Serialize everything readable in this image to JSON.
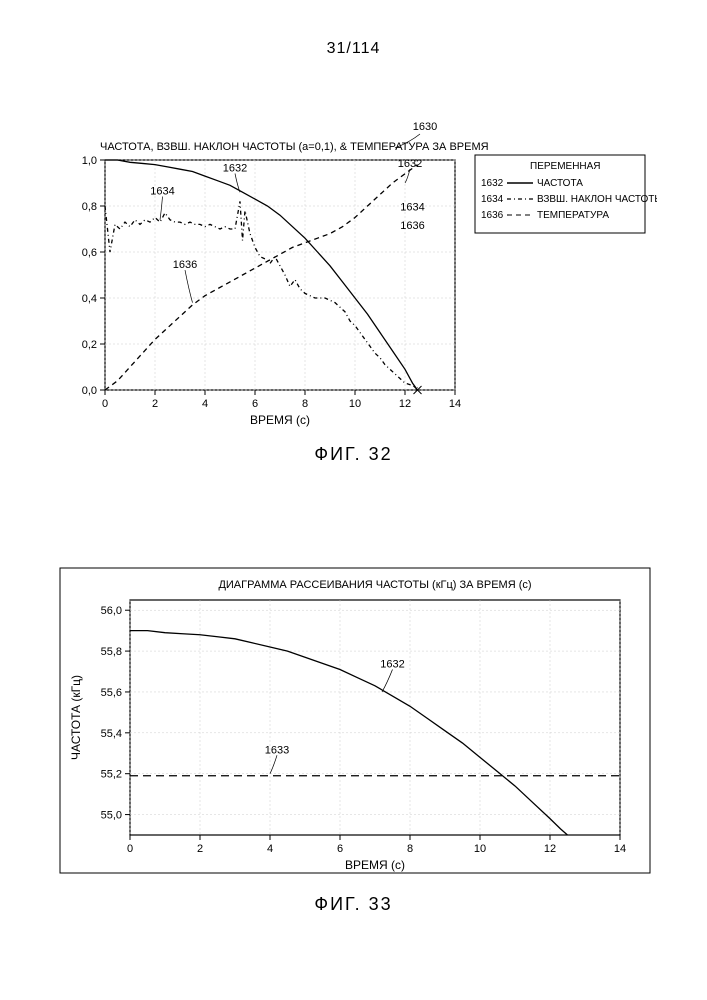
{
  "page": {
    "number": "31/114"
  },
  "fig32": {
    "type": "line-multi",
    "title": "ЧАСТОТА, ВЗВШ. НАКЛОН ЧАСТОТЫ (a=0,1), & ТЕМПЕРАТУРА ЗА ВРЕМЯ",
    "ref_label": "1630",
    "caption": "ФИГ. 32",
    "background_color": "#ffffff",
    "grid_color": "#cccccc",
    "border_color": "#000000",
    "x": {
      "label": "ВРЕМЯ (c)",
      "lim": [
        0,
        14
      ],
      "ticks": [
        0,
        2,
        4,
        6,
        8,
        10,
        12,
        14
      ]
    },
    "y": {
      "lim": [
        0.0,
        1.0
      ],
      "ticks": [
        0.0,
        0.2,
        0.4,
        0.6,
        0.8,
        1.0
      ],
      "tick_labels": [
        "0,0",
        "0,2",
        "0,4",
        "0,6",
        "0,8",
        "1,0"
      ]
    },
    "legend": {
      "header": "ПЕРЕМЕННАЯ",
      "items": [
        {
          "id": "1632",
          "label": "ЧАСТОТА",
          "color": "#000000",
          "dash": "",
          "width": 1.5
        },
        {
          "id": "1634",
          "label": "ВЗВШ. НАКЛОН ЧАСТОТЫ",
          "color": "#000000",
          "dash": "4 3 1 3",
          "width": 1.3
        },
        {
          "id": "1636",
          "label": "ТЕМПЕРАТУРА",
          "color": "#000000",
          "dash": "5 4",
          "width": 1.1
        }
      ]
    },
    "annotations": [
      {
        "text": "1630",
        "at_x": 12.8,
        "at_y": 1.12
      },
      {
        "text": "1632",
        "at_x": 5.2,
        "at_y": 0.95,
        "leader_to_x": 5.4,
        "leader_to_y": 0.86
      },
      {
        "text": "1632",
        "at_x": 12.2,
        "at_y": 0.97,
        "leader_to_x": 12.0,
        "leader_to_y": 0.9
      },
      {
        "text": "1634",
        "at_x": 2.3,
        "at_y": 0.85,
        "leader_to_x": 2.2,
        "leader_to_y": 0.74
      },
      {
        "text": "1636",
        "at_x": 3.2,
        "at_y": 0.53,
        "leader_to_x": 3.5,
        "leader_to_y": 0.38
      },
      {
        "text": "1634",
        "at_x": 12.3,
        "at_y": 0.78
      },
      {
        "text": "1636",
        "at_x": 12.3,
        "at_y": 0.7
      }
    ],
    "series": {
      "1632": [
        [
          0.0,
          1.0
        ],
        [
          0.5,
          1.0
        ],
        [
          1.0,
          0.99
        ],
        [
          1.5,
          0.985
        ],
        [
          2.0,
          0.98
        ],
        [
          2.5,
          0.97
        ],
        [
          3.0,
          0.96
        ],
        [
          3.5,
          0.95
        ],
        [
          4.0,
          0.93
        ],
        [
          4.5,
          0.91
        ],
        [
          5.0,
          0.89
        ],
        [
          5.5,
          0.86
        ],
        [
          6.0,
          0.83
        ],
        [
          6.5,
          0.8
        ],
        [
          7.0,
          0.76
        ],
        [
          7.5,
          0.71
        ],
        [
          8.0,
          0.66
        ],
        [
          8.5,
          0.6
        ],
        [
          9.0,
          0.54
        ],
        [
          9.5,
          0.47
        ],
        [
          10.0,
          0.4
        ],
        [
          10.5,
          0.33
        ],
        [
          11.0,
          0.25
        ],
        [
          11.5,
          0.17
        ],
        [
          12.0,
          0.09
        ],
        [
          12.3,
          0.03
        ],
        [
          12.5,
          0.0
        ]
      ],
      "1634": [
        [
          0.0,
          0.8
        ],
        [
          0.2,
          0.6
        ],
        [
          0.4,
          0.72
        ],
        [
          0.6,
          0.7
        ],
        [
          0.8,
          0.73
        ],
        [
          1.0,
          0.71
        ],
        [
          1.2,
          0.74
        ],
        [
          1.4,
          0.72
        ],
        [
          1.6,
          0.74
        ],
        [
          1.8,
          0.73
        ],
        [
          2.0,
          0.75
        ],
        [
          2.2,
          0.73
        ],
        [
          2.4,
          0.77
        ],
        [
          2.6,
          0.74
        ],
        [
          2.8,
          0.73
        ],
        [
          3.0,
          0.73
        ],
        [
          3.2,
          0.72
        ],
        [
          3.4,
          0.73
        ],
        [
          3.6,
          0.72
        ],
        [
          3.8,
          0.72
        ],
        [
          4.0,
          0.71
        ],
        [
          4.2,
          0.72
        ],
        [
          4.4,
          0.71
        ],
        [
          4.6,
          0.7
        ],
        [
          4.8,
          0.71
        ],
        [
          5.0,
          0.7
        ],
        [
          5.2,
          0.7
        ],
        [
          5.4,
          0.82
        ],
        [
          5.5,
          0.65
        ],
        [
          5.6,
          0.78
        ],
        [
          5.8,
          0.68
        ],
        [
          6.0,
          0.62
        ],
        [
          6.2,
          0.58
        ],
        [
          6.4,
          0.57
        ],
        [
          6.6,
          0.55
        ],
        [
          6.8,
          0.58
        ],
        [
          7.0,
          0.54
        ],
        [
          7.2,
          0.5
        ],
        [
          7.4,
          0.45
        ],
        [
          7.6,
          0.48
        ],
        [
          7.8,
          0.44
        ],
        [
          8.0,
          0.42
        ],
        [
          8.2,
          0.41
        ],
        [
          8.4,
          0.4
        ],
        [
          8.6,
          0.4
        ],
        [
          8.8,
          0.4
        ],
        [
          9.0,
          0.39
        ],
        [
          9.2,
          0.38
        ],
        [
          9.4,
          0.36
        ],
        [
          9.6,
          0.34
        ],
        [
          9.8,
          0.3
        ],
        [
          10.0,
          0.28
        ],
        [
          10.2,
          0.25
        ],
        [
          10.4,
          0.22
        ],
        [
          10.6,
          0.19
        ],
        [
          10.8,
          0.16
        ],
        [
          11.0,
          0.14
        ],
        [
          11.2,
          0.11
        ],
        [
          11.4,
          0.09
        ],
        [
          11.6,
          0.07
        ],
        [
          11.8,
          0.05
        ],
        [
          12.0,
          0.03
        ],
        [
          12.3,
          0.02
        ],
        [
          12.5,
          0.01
        ]
      ],
      "1636": [
        [
          0.0,
          0.0
        ],
        [
          0.5,
          0.04
        ],
        [
          1.0,
          0.1
        ],
        [
          1.5,
          0.16
        ],
        [
          2.0,
          0.22
        ],
        [
          2.5,
          0.27
        ],
        [
          3.0,
          0.32
        ],
        [
          3.5,
          0.37
        ],
        [
          4.0,
          0.41
        ],
        [
          4.5,
          0.44
        ],
        [
          5.0,
          0.47
        ],
        [
          5.5,
          0.5
        ],
        [
          6.0,
          0.53
        ],
        [
          6.5,
          0.56
        ],
        [
          7.0,
          0.59
        ],
        [
          7.5,
          0.62
        ],
        [
          8.0,
          0.64
        ],
        [
          8.5,
          0.66
        ],
        [
          9.0,
          0.68
        ],
        [
          9.5,
          0.71
        ],
        [
          10.0,
          0.75
        ],
        [
          10.5,
          0.8
        ],
        [
          11.0,
          0.85
        ],
        [
          11.5,
          0.9
        ],
        [
          12.0,
          0.94
        ],
        [
          12.5,
          0.98
        ]
      ]
    }
  },
  "fig33": {
    "type": "line",
    "title": "ДИАГРАММА РАССЕИВАНИЯ ЧАСТОТЫ (кГц) ЗА ВРЕМЯ (c)",
    "caption": "ФИГ. 33",
    "background_color": "#ffffff",
    "grid_color": "#cccccc",
    "border_color": "#000000",
    "x": {
      "label": "ВРЕМЯ (c)",
      "lim": [
        0,
        14
      ],
      "ticks": [
        0,
        2,
        4,
        6,
        8,
        10,
        12,
        14
      ]
    },
    "y": {
      "label": "ЧАСТОТА (кГц)",
      "lim": [
        54.9,
        56.05
      ],
      "ticks": [
        55.0,
        55.2,
        55.4,
        55.6,
        55.8,
        56.0
      ],
      "tick_labels": [
        "55,0",
        "55,2",
        "55,4",
        "55,6",
        "55,8",
        "56,0"
      ]
    },
    "series": {
      "1632": {
        "color": "#000000",
        "dash": "",
        "width": 1.6,
        "data": [
          [
            0.0,
            55.9
          ],
          [
            0.5,
            55.9
          ],
          [
            1.0,
            55.89
          ],
          [
            1.5,
            55.885
          ],
          [
            2.0,
            55.88
          ],
          [
            2.5,
            55.87
          ],
          [
            3.0,
            55.86
          ],
          [
            3.5,
            55.84
          ],
          [
            4.0,
            55.82
          ],
          [
            4.5,
            55.8
          ],
          [
            5.0,
            55.77
          ],
          [
            5.5,
            55.74
          ],
          [
            6.0,
            55.71
          ],
          [
            6.5,
            55.67
          ],
          [
            7.0,
            55.63
          ],
          [
            7.5,
            55.58
          ],
          [
            8.0,
            55.53
          ],
          [
            8.5,
            55.47
          ],
          [
            9.0,
            55.41
          ],
          [
            9.5,
            55.35
          ],
          [
            10.0,
            55.28
          ],
          [
            10.5,
            55.21
          ],
          [
            11.0,
            55.14
          ],
          [
            11.5,
            55.06
          ],
          [
            12.0,
            54.98
          ],
          [
            12.3,
            54.93
          ],
          [
            12.5,
            54.9
          ]
        ]
      },
      "1633": {
        "color": "#000000",
        "dash": "8 5",
        "width": 2.0,
        "data": [
          [
            0.0,
            55.19
          ],
          [
            14.0,
            55.19
          ]
        ]
      }
    },
    "annotations": [
      {
        "text": "1632",
        "at_x": 7.5,
        "at_y": 55.72,
        "leader_to_x": 7.2,
        "leader_to_y": 55.6
      },
      {
        "text": "1633",
        "at_x": 4.2,
        "at_y": 55.3,
        "leader_to_x": 4.0,
        "leader_to_y": 55.2
      }
    ]
  }
}
